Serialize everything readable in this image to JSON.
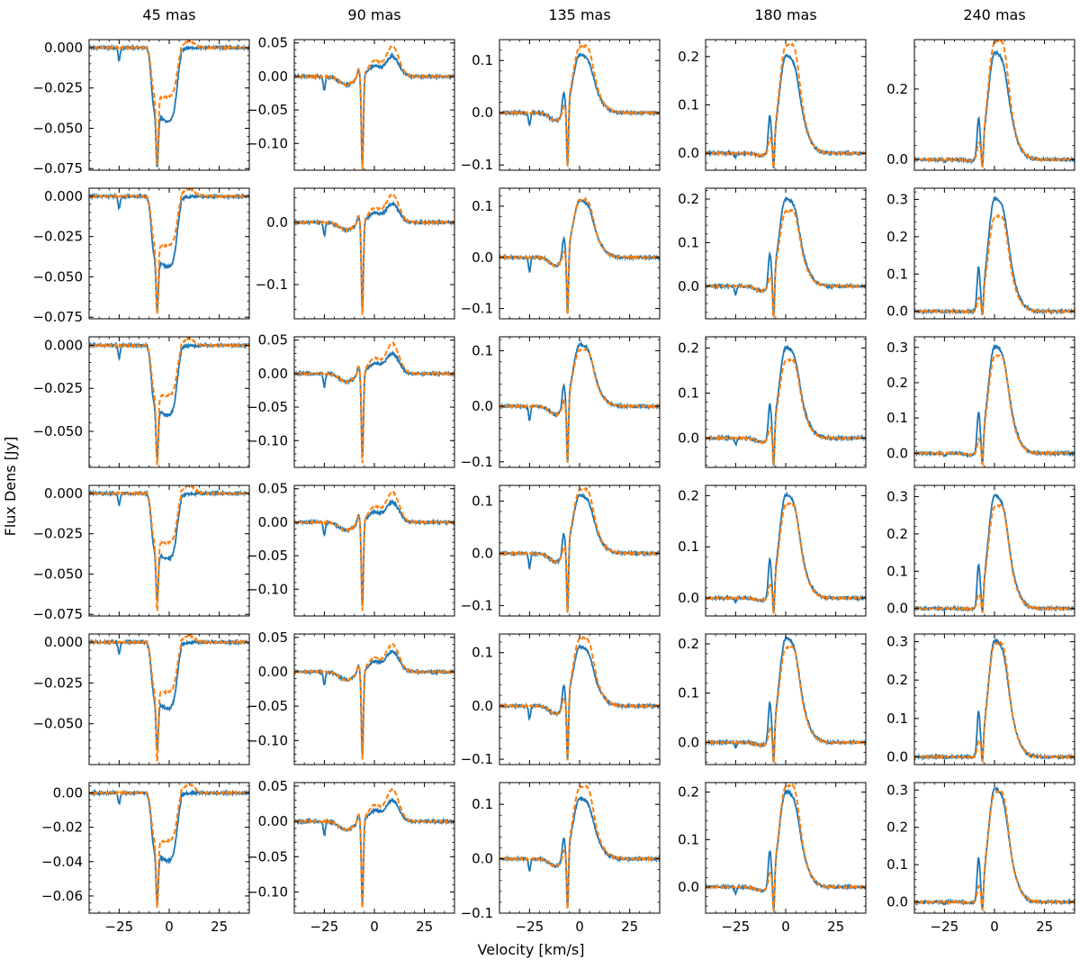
{
  "figure": {
    "xlabel": "Velocity [km/s]",
    "ylabel": "Flux Dens [Jy]",
    "column_titles": [
      "45 mas",
      "90 mas",
      "135 mas",
      "180 mas",
      "240 mas"
    ],
    "colors": {
      "observed": "#1f77b4",
      "model": "#ff7f0e",
      "axes": "#000000"
    }
  },
  "chart_data": {
    "type": "line",
    "grid": false,
    "layout": "6 rows x 5 columns of panels, shared x-axis",
    "series_styles": [
      {
        "role": "observed",
        "color": "#1f77b4",
        "dash": "solid"
      },
      {
        "role": "model",
        "color": "#ff7f0e",
        "dash": "dashed"
      }
    ],
    "xlim": [
      -40,
      40
    ],
    "xticks": [
      -25,
      0,
      25
    ],
    "xtick_labels": [
      "−25",
      "0",
      "25"
    ],
    "absorption_velocity": -6,
    "columns": [
      {
        "title": "45 mas",
        "profile": "absorption"
      },
      {
        "title": "90 mas",
        "profile": "mixed"
      },
      {
        "title": "135 mas",
        "profile": "emission"
      },
      {
        "title": "180 mas",
        "profile": "emission"
      },
      {
        "title": "240 mas",
        "profile": "emission"
      }
    ],
    "panels": [
      [
        {
          "ylim": [
            -0.076,
            0.005
          ],
          "yticks": [
            0.0,
            -0.025,
            -0.05,
            -0.075
          ],
          "ytick_labels": [
            "0.000",
            "−0.025",
            "−0.050",
            "−0.075"
          ],
          "min_obs": -0.073,
          "min_model": -0.073,
          "peak_model": 0.004
        },
        {
          "ylim": [
            -0.14,
            0.055
          ],
          "yticks": [
            0.05,
            0.0,
            -0.05,
            -0.1
          ],
          "ytick_labels": [
            "0.05",
            "0.00",
            "−0.05",
            "−0.10"
          ],
          "min_obs": -0.135,
          "min_model": -0.14,
          "peak_obs": 0.03,
          "peak_model": 0.045
        },
        {
          "ylim": [
            -0.11,
            0.14
          ],
          "yticks": [
            0.1,
            0.0,
            -0.1
          ],
          "ytick_labels": [
            "0.1",
            "0.0",
            "−0.1"
          ],
          "min_obs": -0.1,
          "min_model": -0.1,
          "peak_obs": 0.11,
          "peak_model": 0.125
        },
        {
          "ylim": [
            -0.035,
            0.235
          ],
          "yticks": [
            0.2,
            0.1,
            0.0
          ],
          "ytick_labels": [
            "0.2",
            "0.1",
            "0.0"
          ],
          "min_obs": -0.03,
          "min_model": -0.03,
          "peak_obs": 0.2,
          "peak_model": 0.22
        },
        {
          "ylim": [
            -0.03,
            0.34
          ],
          "yticks": [
            0.2,
            0.0
          ],
          "ytick_labels": [
            "0.2",
            "0.0"
          ],
          "min_obs": -0.02,
          "min_model": -0.02,
          "peak_obs": 0.3,
          "peak_model": 0.33
        }
      ],
      [
        {
          "ylim": [
            -0.076,
            0.005
          ],
          "yticks": [
            0.0,
            -0.025,
            -0.05,
            -0.075
          ],
          "ytick_labels": [
            "0.000",
            "−0.025",
            "−0.050",
            "−0.075"
          ],
          "min_obs": -0.07,
          "min_model": -0.073,
          "peak_model": 0.005
        },
        {
          "ylim": [
            -0.155,
            0.055
          ],
          "yticks": [
            0.0,
            -0.1
          ],
          "ytick_labels": [
            "0.0",
            "−0.1"
          ],
          "min_obs": -0.14,
          "min_model": -0.15,
          "peak_obs": 0.03,
          "peak_model": 0.045
        },
        {
          "ylim": [
            -0.12,
            0.135
          ],
          "yticks": [
            0.1,
            0.0,
            -0.1
          ],
          "ytick_labels": [
            "0.1",
            "0.0",
            "−0.1"
          ],
          "min_obs": -0.11,
          "min_model": -0.11,
          "peak_obs": 0.11,
          "peak_model": 0.11
        },
        {
          "ylim": [
            -0.075,
            0.225
          ],
          "yticks": [
            0.2,
            0.1,
            0.0
          ],
          "ytick_labels": [
            "0.2",
            "0.1",
            "0.0"
          ],
          "min_obs": -0.07,
          "min_model": -0.07,
          "peak_obs": 0.2,
          "peak_model": 0.17
        },
        {
          "ylim": [
            -0.02,
            0.33
          ],
          "yticks": [
            0.3,
            0.2,
            0.1,
            0.0
          ],
          "ytick_labels": [
            "0.3",
            "0.2",
            "0.1",
            "0.0"
          ],
          "min_obs": -0.01,
          "min_model": -0.01,
          "peak_obs": 0.3,
          "peak_model": 0.25
        }
      ],
      [
        {
          "ylim": [
            -0.071,
            0.005
          ],
          "yticks": [
            0.0,
            -0.025,
            -0.05
          ],
          "ytick_labels": [
            "0.000",
            "−0.025",
            "−0.050"
          ],
          "min_obs": -0.065,
          "min_model": -0.07,
          "peak_model": 0.004
        },
        {
          "ylim": [
            -0.14,
            0.055
          ],
          "yticks": [
            0.05,
            0.0,
            -0.05,
            -0.1
          ],
          "ytick_labels": [
            "0.05",
            "0.00",
            "−0.05",
            "−0.10"
          ],
          "min_obs": -0.125,
          "min_model": -0.135,
          "peak_obs": 0.03,
          "peak_model": 0.045
        },
        {
          "ylim": [
            -0.11,
            0.125
          ],
          "yticks": [
            0.1,
            0.0,
            -0.1
          ],
          "ytick_labels": [
            "0.1",
            "0.0",
            "−0.1"
          ],
          "min_obs": -0.1,
          "min_model": -0.1,
          "peak_obs": 0.11,
          "peak_model": 0.1
        },
        {
          "ylim": [
            -0.065,
            0.225
          ],
          "yticks": [
            0.2,
            0.1,
            0.0
          ],
          "ytick_labels": [
            "0.2",
            "0.1",
            "0.0"
          ],
          "min_obs": -0.06,
          "min_model": -0.06,
          "peak_obs": 0.2,
          "peak_model": 0.17
        },
        {
          "ylim": [
            -0.04,
            0.33
          ],
          "yticks": [
            0.3,
            0.2,
            0.1,
            0.0
          ],
          "ytick_labels": [
            "0.3",
            "0.2",
            "0.1",
            "0.0"
          ],
          "min_obs": -0.03,
          "min_model": -0.03,
          "peak_obs": 0.3,
          "peak_model": 0.27
        }
      ],
      [
        {
          "ylim": [
            -0.076,
            0.005
          ],
          "yticks": [
            0.0,
            -0.025,
            -0.05,
            -0.075
          ],
          "ytick_labels": [
            "0.000",
            "−0.025",
            "−0.050",
            "−0.075"
          ],
          "min_obs": -0.065,
          "min_model": -0.073,
          "peak_model": 0.005
        },
        {
          "ylim": [
            -0.14,
            0.055
          ],
          "yticks": [
            0.05,
            0.0,
            -0.05,
            -0.1
          ],
          "ytick_labels": [
            "0.05",
            "0.00",
            "−0.05",
            "−0.10"
          ],
          "min_obs": -0.125,
          "min_model": -0.135,
          "peak_obs": 0.03,
          "peak_model": 0.045
        },
        {
          "ylim": [
            -0.12,
            0.13
          ],
          "yticks": [
            0.1,
            0.0,
            -0.1
          ],
          "ytick_labels": [
            "0.1",
            "0.0",
            "−0.1"
          ],
          "min_obs": -0.11,
          "min_model": -0.11,
          "peak_obs": 0.11,
          "peak_model": 0.12
        },
        {
          "ylim": [
            -0.035,
            0.22
          ],
          "yticks": [
            0.2,
            0.1,
            0.0
          ],
          "ytick_labels": [
            "0.2",
            "0.1",
            "0.0"
          ],
          "min_obs": -0.03,
          "min_model": -0.03,
          "peak_obs": 0.2,
          "peak_model": 0.18
        },
        {
          "ylim": [
            -0.02,
            0.33
          ],
          "yticks": [
            0.3,
            0.2,
            0.1,
            0.0
          ],
          "ytick_labels": [
            "0.3",
            "0.2",
            "0.1",
            "0.0"
          ],
          "min_obs": -0.01,
          "min_model": -0.01,
          "peak_obs": 0.3,
          "peak_model": 0.27
        }
      ],
      [
        {
          "ylim": [
            -0.075,
            0.005
          ],
          "yticks": [
            0.0,
            -0.025,
            -0.05
          ],
          "ytick_labels": [
            "0.000",
            "−0.025",
            "−0.050"
          ],
          "min_obs": -0.065,
          "min_model": -0.073,
          "peak_model": 0.004
        },
        {
          "ylim": [
            -0.135,
            0.055
          ],
          "yticks": [
            0.05,
            0.0,
            -0.05,
            -0.1
          ],
          "ytick_labels": [
            "0.05",
            "0.00",
            "−0.05",
            "−0.10"
          ],
          "min_obs": -0.12,
          "min_model": -0.13,
          "peak_obs": 0.03,
          "peak_model": 0.04
        },
        {
          "ylim": [
            -0.11,
            0.135
          ],
          "yticks": [
            0.1,
            0.0,
            -0.1
          ],
          "ytick_labels": [
            "0.1",
            "0.0",
            "−0.1"
          ],
          "min_obs": -0.1,
          "min_model": -0.1,
          "peak_obs": 0.11,
          "peak_model": 0.125
        },
        {
          "ylim": [
            -0.045,
            0.22
          ],
          "yticks": [
            0.2,
            0.1,
            0.0
          ],
          "ytick_labels": [
            "0.2",
            "0.1",
            "0.0"
          ],
          "min_obs": -0.04,
          "min_model": -0.04,
          "peak_obs": 0.21,
          "peak_model": 0.19
        },
        {
          "ylim": [
            -0.02,
            0.32
          ],
          "yticks": [
            0.3,
            0.2,
            0.1,
            0.0
          ],
          "ytick_labels": [
            "0.3",
            "0.2",
            "0.1",
            "0.0"
          ],
          "min_obs": -0.01,
          "min_model": -0.01,
          "peak_obs": 0.3,
          "peak_model": 0.29
        }
      ],
      [
        {
          "ylim": [
            -0.07,
            0.006
          ],
          "yticks": [
            0.0,
            -0.02,
            -0.04,
            -0.06
          ],
          "ytick_labels": [
            "0.00",
            "−0.02",
            "−0.04",
            "−0.06"
          ],
          "min_obs": -0.063,
          "min_model": -0.067,
          "peak_model": 0.005
        },
        {
          "ylim": [
            -0.13,
            0.055
          ],
          "yticks": [
            0.05,
            0.0,
            -0.05,
            -0.1
          ],
          "ytick_labels": [
            "0.05",
            "0.00",
            "−0.05",
            "−0.10"
          ],
          "min_obs": -0.115,
          "min_model": -0.125,
          "peak_obs": 0.03,
          "peak_model": 0.045
        },
        {
          "ylim": [
            -0.1,
            0.14
          ],
          "yticks": [
            0.1,
            0.0,
            -0.1
          ],
          "ytick_labels": [
            "0.1",
            "0.0",
            "−0.1"
          ],
          "min_obs": -0.09,
          "min_model": -0.09,
          "peak_obs": 0.11,
          "peak_model": 0.13
        },
        {
          "ylim": [
            -0.055,
            0.22
          ],
          "yticks": [
            0.2,
            0.1,
            0.0
          ],
          "ytick_labels": [
            "0.2",
            "0.1",
            "0.0"
          ],
          "min_obs": -0.05,
          "min_model": -0.05,
          "peak_obs": 0.2,
          "peak_model": 0.21
        },
        {
          "ylim": [
            -0.03,
            0.32
          ],
          "yticks": [
            0.3,
            0.2,
            0.1,
            0.0
          ],
          "ytick_labels": [
            "0.3",
            "0.2",
            "0.1",
            "0.0"
          ],
          "min_obs": -0.02,
          "min_model": -0.02,
          "peak_obs": 0.3,
          "peak_model": 0.29
        }
      ]
    ]
  }
}
